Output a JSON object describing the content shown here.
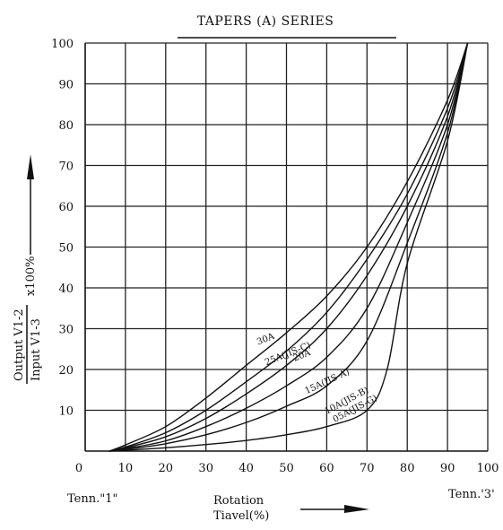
{
  "chart_data": {
    "type": "line",
    "title": "TAPERS (A) SERIES",
    "xlabel_line1": "Rotation",
    "xlabel_line2": "Tiavel(%)",
    "ylabel_numerator": "Output V1-2",
    "ylabel_denominator": "Input V1-3",
    "ylabel_factor": "x100%",
    "left_terminal": "Tenn.\"1\"",
    "right_terminal": "Tenn.'3'",
    "xlim": [
      0,
      100
    ],
    "ylim": [
      0,
      100
    ],
    "x_ticks": [
      "0",
      "10",
      "20",
      "30",
      "40",
      "50",
      "60",
      "70",
      "80",
      "90",
      "100"
    ],
    "y_ticks": [
      "10",
      "20",
      "30",
      "40",
      "50",
      "60",
      "70",
      "80",
      "90",
      "100"
    ],
    "grid": true,
    "series": [
      {
        "name": "30A",
        "label_at": [
          43,
          26
        ],
        "label_angle": -22,
        "x": [
          6,
          10,
          20,
          30,
          40,
          50,
          60,
          70,
          80,
          90,
          95
        ],
        "y": [
          0,
          1.5,
          6,
          13,
          21,
          29,
          38,
          50,
          66,
          86,
          100
        ]
      },
      {
        "name": "25A(JIS-C)",
        "label_at": [
          45,
          21
        ],
        "label_angle": -22,
        "x": [
          6,
          10,
          20,
          30,
          40,
          50,
          60,
          70,
          80,
          90,
          95
        ],
        "y": [
          0,
          1,
          4.5,
          10,
          17,
          24.5,
          34,
          47,
          63,
          84,
          100
        ]
      },
      {
        "name": "20A",
        "label_at": [
          52,
          22
        ],
        "label_angle": -22,
        "x": [
          6,
          10,
          20,
          30,
          40,
          50,
          60,
          70,
          80,
          90,
          95
        ],
        "y": [
          0,
          0.8,
          3.5,
          8,
          14,
          21,
          30,
          43,
          60,
          82,
          100
        ]
      },
      {
        "name": "15A(JIS-A)",
        "label_at": [
          55,
          14
        ],
        "label_angle": -25,
        "x": [
          6,
          10,
          20,
          30,
          40,
          50,
          60,
          70,
          80,
          90,
          95
        ],
        "y": [
          0,
          0.6,
          2.5,
          6,
          10.5,
          16,
          23,
          35,
          56,
          80,
          100
        ]
      },
      {
        "name": "10A(JIS-B)",
        "label_at": [
          60,
          9
        ],
        "label_angle": -28,
        "x": [
          6,
          10,
          20,
          30,
          40,
          50,
          60,
          70,
          80,
          90,
          95
        ],
        "y": [
          0,
          0.4,
          1.8,
          4,
          7,
          11,
          16,
          27,
          51,
          78,
          100
        ]
      },
      {
        "name": "05A(JIS-G)",
        "label_at": [
          62,
          7
        ],
        "label_angle": -28,
        "x": [
          6,
          10,
          20,
          30,
          40,
          50,
          60,
          70,
          75,
          80,
          90,
          95
        ],
        "y": [
          0,
          0.2,
          0.8,
          1.6,
          2.6,
          4,
          6,
          10,
          20,
          46,
          76,
          100
        ]
      }
    ]
  }
}
